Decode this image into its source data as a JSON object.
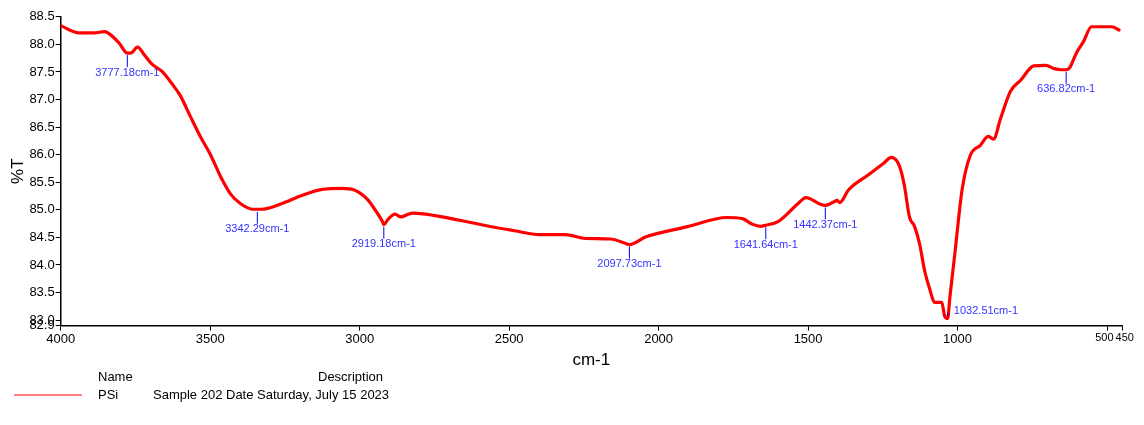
{
  "chart_data": {
    "type": "line",
    "xlabel": "cm-1",
    "ylabel": "%T",
    "legend_title": "Name",
    "legend": "bottom left",
    "xlim": [
      4000,
      450
    ],
    "xticks": [
      4000,
      3500,
      3000,
      2500,
      2000,
      1500,
      1000,
      500,
      450
    ],
    "ylim": [
      82.9,
      88.5
    ],
    "yticks": [
      {
        "value": 88.5,
        "label": "88.5"
      },
      {
        "value": 88,
        "label": "88.0"
      },
      {
        "value": 87.5,
        "label": "87.5"
      },
      {
        "value": 87,
        "label": "87.0"
      },
      {
        "value": 86.5,
        "label": "86.5"
      },
      {
        "value": 86,
        "label": "86.0"
      },
      {
        "value": 85.5,
        "label": "85.5"
      },
      {
        "value": 85,
        "label": "85.0"
      },
      {
        "value": 84.5,
        "label": "84.5"
      },
      {
        "value": 84,
        "label": "84.0"
      },
      {
        "value": 83.5,
        "label": "83.5"
      },
      {
        "value": 83,
        "label": "83.0"
      },
      {
        "value": 82.9,
        "label": "82.9"
      }
    ],
    "grid": false,
    "marker": "none",
    "line_style": "solid",
    "series": [
      {
        "name": "PSi",
        "color": "#ff0000",
        "x": [
          4000,
          3939,
          3888,
          3854,
          3837,
          3804,
          3777,
          3763,
          3743,
          3719,
          3695,
          3661,
          3627,
          3600,
          3566,
          3533,
          3499,
          3465,
          3431,
          3398,
          3356,
          3329,
          3262,
          3194,
          3126,
          3058,
          3018,
          2974,
          2946,
          2923,
          2919,
          2906,
          2882,
          2862,
          2838,
          2821,
          2753,
          2584,
          2482,
          2398,
          2313,
          2245,
          2161,
          2110,
          2098,
          2042,
          1907,
          1771,
          1720,
          1687,
          1659,
          1642,
          1602,
          1534,
          1507,
          1459,
          1442,
          1415,
          1403,
          1394,
          1365,
          1297,
          1246,
          1222,
          1195,
          1178,
          1161,
          1144,
          1127,
          1110,
          1093,
          1077,
          1053,
          1043,
          1033,
          1026,
          1009,
          985,
          958,
          924,
          897,
          880,
          856,
          823,
          789,
          745,
          704,
          677,
          653,
          637,
          626,
          602,
          579,
          552,
          518,
          484,
          460
        ],
        "values": [
          88.34,
          88.21,
          88.21,
          88.23,
          88.19,
          88.02,
          87.84,
          87.85,
          87.95,
          87.8,
          87.64,
          87.51,
          87.28,
          87.07,
          86.69,
          86.33,
          86.0,
          85.6,
          85.28,
          85.11,
          85.01,
          85.01,
          85.11,
          85.26,
          85.37,
          85.39,
          85.36,
          85.19,
          84.98,
          84.78,
          84.73,
          84.82,
          84.92,
          84.87,
          84.92,
          84.94,
          84.9,
          84.72,
          84.62,
          84.55,
          84.55,
          84.48,
          84.47,
          84.39,
          84.37,
          84.51,
          84.69,
          84.86,
          84.84,
          84.74,
          84.7,
          84.72,
          84.78,
          85.11,
          85.22,
          85.1,
          85.08,
          85.14,
          85.17,
          85.13,
          85.36,
          85.64,
          85.85,
          85.95,
          85.8,
          85.44,
          84.87,
          84.7,
          84.38,
          83.89,
          83.56,
          83.32,
          83.32,
          83.07,
          83.03,
          83.4,
          84.21,
          85.36,
          85.98,
          86.17,
          86.33,
          86.28,
          86.66,
          87.15,
          87.35,
          87.61,
          87.62,
          87.56,
          87.54,
          87.54,
          87.57,
          87.85,
          88.05,
          88.32,
          88.32,
          88.32,
          88.26
        ]
      }
    ],
    "annotations": [
      {
        "text": "3777.18cm-1",
        "x": 3777.18,
        "y": 87.84
      },
      {
        "text": "3342.29cm-1",
        "x": 3342.29,
        "y": 85.0
      },
      {
        "text": "2919.18cm-1",
        "x": 2919.18,
        "y": 84.73
      },
      {
        "text": "2097.73cm-1",
        "x": 2097.73,
        "y": 84.37
      },
      {
        "text": "1641.64cm-1",
        "x": 1641.64,
        "y": 84.72
      },
      {
        "text": "1442.37cm-1",
        "x": 1442.37,
        "y": 85.08
      },
      {
        "text": "1032.51cm-1",
        "x": 1032.51,
        "y": 83.03
      },
      {
        "text": "636.82cm-1",
        "x": 636.82,
        "y": 87.54
      },
      "Description",
      "Sample 202 Date Saturday, July 15 2023"
    ]
  }
}
